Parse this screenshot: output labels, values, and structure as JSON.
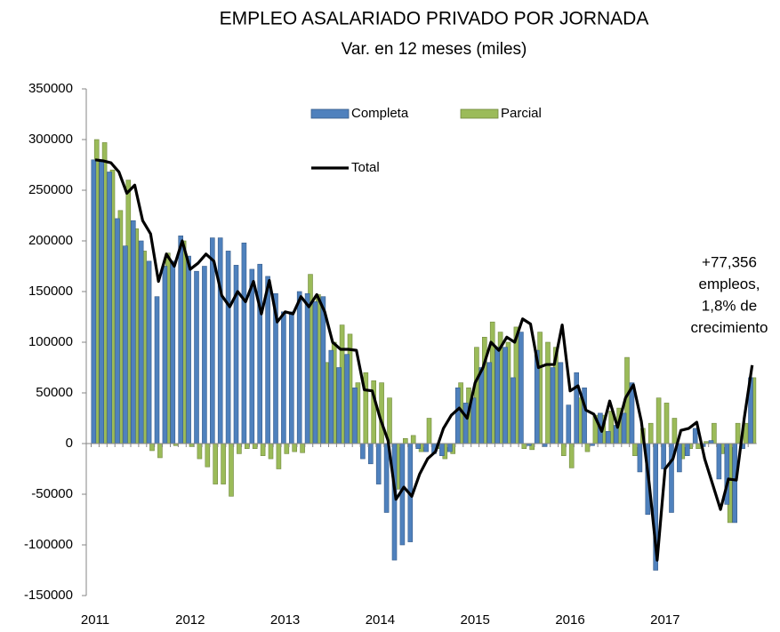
{
  "chart_data": {
    "type": "bar",
    "title": "EMPLEO ASALARIADO PRIVADO POR JORNADA",
    "subtitle": "Var. en 12 meses (miles)",
    "annotation": [
      "+77,356",
      "empleos,",
      "1,8% de",
      "crecimiento"
    ],
    "categories": [
      "2011",
      null,
      null,
      null,
      null,
      null,
      null,
      null,
      null,
      null,
      null,
      null,
      "2012",
      null,
      null,
      null,
      null,
      null,
      null,
      null,
      null,
      null,
      null,
      null,
      "2013",
      null,
      null,
      null,
      null,
      null,
      null,
      null,
      null,
      null,
      null,
      null,
      "2014",
      null,
      null,
      null,
      null,
      null,
      null,
      null,
      null,
      null,
      null,
      null,
      "2015",
      null,
      null,
      null,
      null,
      null,
      null,
      null,
      null,
      null,
      null,
      null,
      "2016",
      null,
      null,
      null,
      null,
      null,
      null,
      null,
      null,
      null,
      null,
      null,
      "2017",
      null,
      null,
      null,
      null,
      null,
      null,
      null,
      null,
      null,
      null,
      null
    ],
    "series": [
      {
        "name": "Completa",
        "color": "#4f81bd",
        "type": "bar",
        "values": [
          280000,
          278000,
          268000,
          222000,
          195000,
          220000,
          200000,
          180000,
          145000,
          175000,
          180000,
          205000,
          185000,
          170000,
          175000,
          203000,
          203000,
          190000,
          176000,
          198000,
          172000,
          177000,
          165000,
          148000,
          130000,
          130000,
          150000,
          148000,
          140000,
          145000,
          92000,
          75000,
          88000,
          55000,
          -15000,
          -20000,
          -40000,
          -68000,
          -115000,
          -100000,
          -97000,
          -5000,
          -8000,
          -10000,
          -12000,
          -8000,
          55000,
          40000,
          45000,
          75000,
          80000,
          95000,
          95000,
          65000,
          110000,
          -2000,
          92000,
          -3000,
          75000,
          80000,
          38000,
          70000,
          55000,
          -2000,
          30000,
          12000,
          18000,
          30000,
          60000,
          -28000,
          -70000,
          -125000,
          -25000,
          -68000,
          -28000,
          -12000,
          15000,
          -3000,
          3000,
          -35000,
          -60000,
          -78000,
          -5000,
          65000
        ]
      },
      {
        "name": "Parcial",
        "color": "#9bbb59",
        "type": "bar",
        "values": [
          300000,
          297000,
          270000,
          230000,
          260000,
          212000,
          190000,
          -7000,
          -14000,
          188000,
          -2000,
          200000,
          -3000,
          -15000,
          -23000,
          -40000,
          -40000,
          -52000,
          -10000,
          -5000,
          -5000,
          -12000,
          -15000,
          -25000,
          -10000,
          -8000,
          -9000,
          167000,
          147000,
          80000,
          100000,
          117000,
          108000,
          60000,
          70000,
          62000,
          60000,
          45000,
          -45000,
          5000,
          8000,
          -8000,
          25000,
          -5000,
          -15000,
          -10000,
          60000,
          55000,
          95000,
          105000,
          120000,
          110000,
          100000,
          115000,
          -5000,
          -6000,
          110000,
          100000,
          95000,
          -12000,
          -24000,
          45000,
          -8000,
          28000,
          28000,
          32000,
          35000,
          85000,
          -12000,
          15000,
          20000,
          45000,
          40000,
          25000,
          -15000,
          -5000,
          -5000,
          2000,
          20000,
          -10000,
          -78000,
          20000,
          20000,
          65000
        ]
      },
      {
        "name": "Total",
        "color": "#000000",
        "type": "line",
        "values": [
          280000,
          279000,
          277000,
          268000,
          247000,
          255000,
          220000,
          207000,
          160000,
          187000,
          175000,
          200000,
          172000,
          178000,
          187000,
          180000,
          146000,
          135000,
          150000,
          140000,
          160000,
          128000,
          161000,
          120000,
          130000,
          128000,
          145000,
          135000,
          147000,
          130000,
          100000,
          93000,
          93000,
          92000,
          53000,
          52000,
          25000,
          3000,
          -55000,
          -43000,
          -52000,
          -30000,
          -15000,
          -8000,
          15000,
          28000,
          35000,
          25000,
          60000,
          75000,
          100000,
          92000,
          105000,
          100000,
          123000,
          118000,
          75000,
          78000,
          78000,
          117000,
          52000,
          57000,
          33000,
          29000,
          12000,
          42000,
          16000,
          45000,
          58000,
          22000,
          -40000,
          -115000,
          -25000,
          -15000,
          13000,
          15000,
          21000,
          -15000,
          -40000,
          -65000,
          -35000,
          -36000,
          25000,
          77356
        ]
      }
    ],
    "ylim": [
      -150000,
      350000
    ],
    "yticks": [
      -150000,
      -100000,
      -50000,
      0,
      50000,
      100000,
      150000,
      200000,
      250000,
      300000,
      350000
    ]
  }
}
